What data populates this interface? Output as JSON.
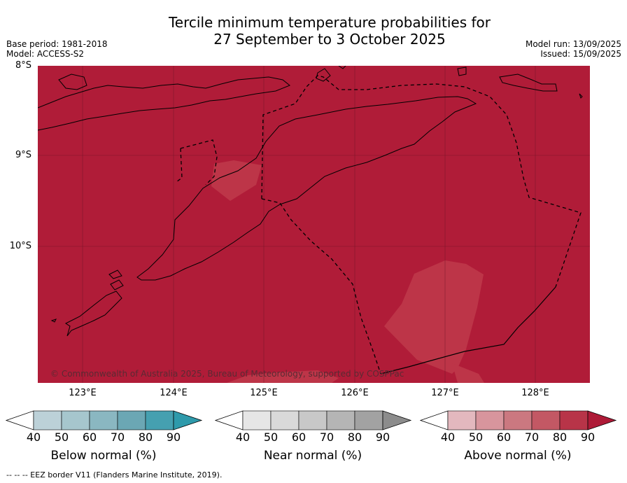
{
  "title_line1": "Tercile minimum temperature probabilities for",
  "title_line2": "27 September to 3 October 2025",
  "base_period": "Base period: 1981-2018",
  "model": "Model: ACCESS-S2",
  "model_run": "Model run: 13/09/2025",
  "issued": "Issued: 15/09/2025",
  "lat_labels": [
    "8°S",
    "9°S",
    "10°S"
  ],
  "lon_labels": [
    "123°E",
    "124°E",
    "125°E",
    "126°E",
    "127°E",
    "128°E"
  ],
  "copyright": "© Commonwealth of Australia 2025, Bureau of Meteorology, supported by COSPPac",
  "colorbars": [
    {
      "label": "Below normal (%)",
      "ticks": [
        "40",
        "50",
        "60",
        "70",
        "80",
        "90"
      ],
      "colors": [
        "#ffffff",
        "#bcd1d8",
        "#a6c6cd",
        "#8ab7c1",
        "#6ba7b4",
        "#45a0b0",
        "#2e9aab"
      ]
    },
    {
      "label": "Near normal (%)",
      "ticks": [
        "40",
        "50",
        "60",
        "70",
        "80",
        "90"
      ],
      "colors": [
        "#ffffff",
        "#e6e6e6",
        "#d9d9d9",
        "#c8c8c8",
        "#b5b5b5",
        "#a2a2a2",
        "#8c8c8c"
      ]
    },
    {
      "label": "Above normal (%)",
      "ticks": [
        "40",
        "50",
        "60",
        "70",
        "80",
        "90"
      ],
      "colors": [
        "#ffffff",
        "#e3b8be",
        "#d8959d",
        "#cb7880",
        "#c35864",
        "#b83448",
        "#ae1a37"
      ]
    }
  ],
  "footer": "--  --  -- EEZ border V11 (Flanders Marine Institute, 2019).",
  "map_colors": {
    "above_90": "#b01c38",
    "above_80": "#bd3548",
    "coast": "#000000"
  }
}
